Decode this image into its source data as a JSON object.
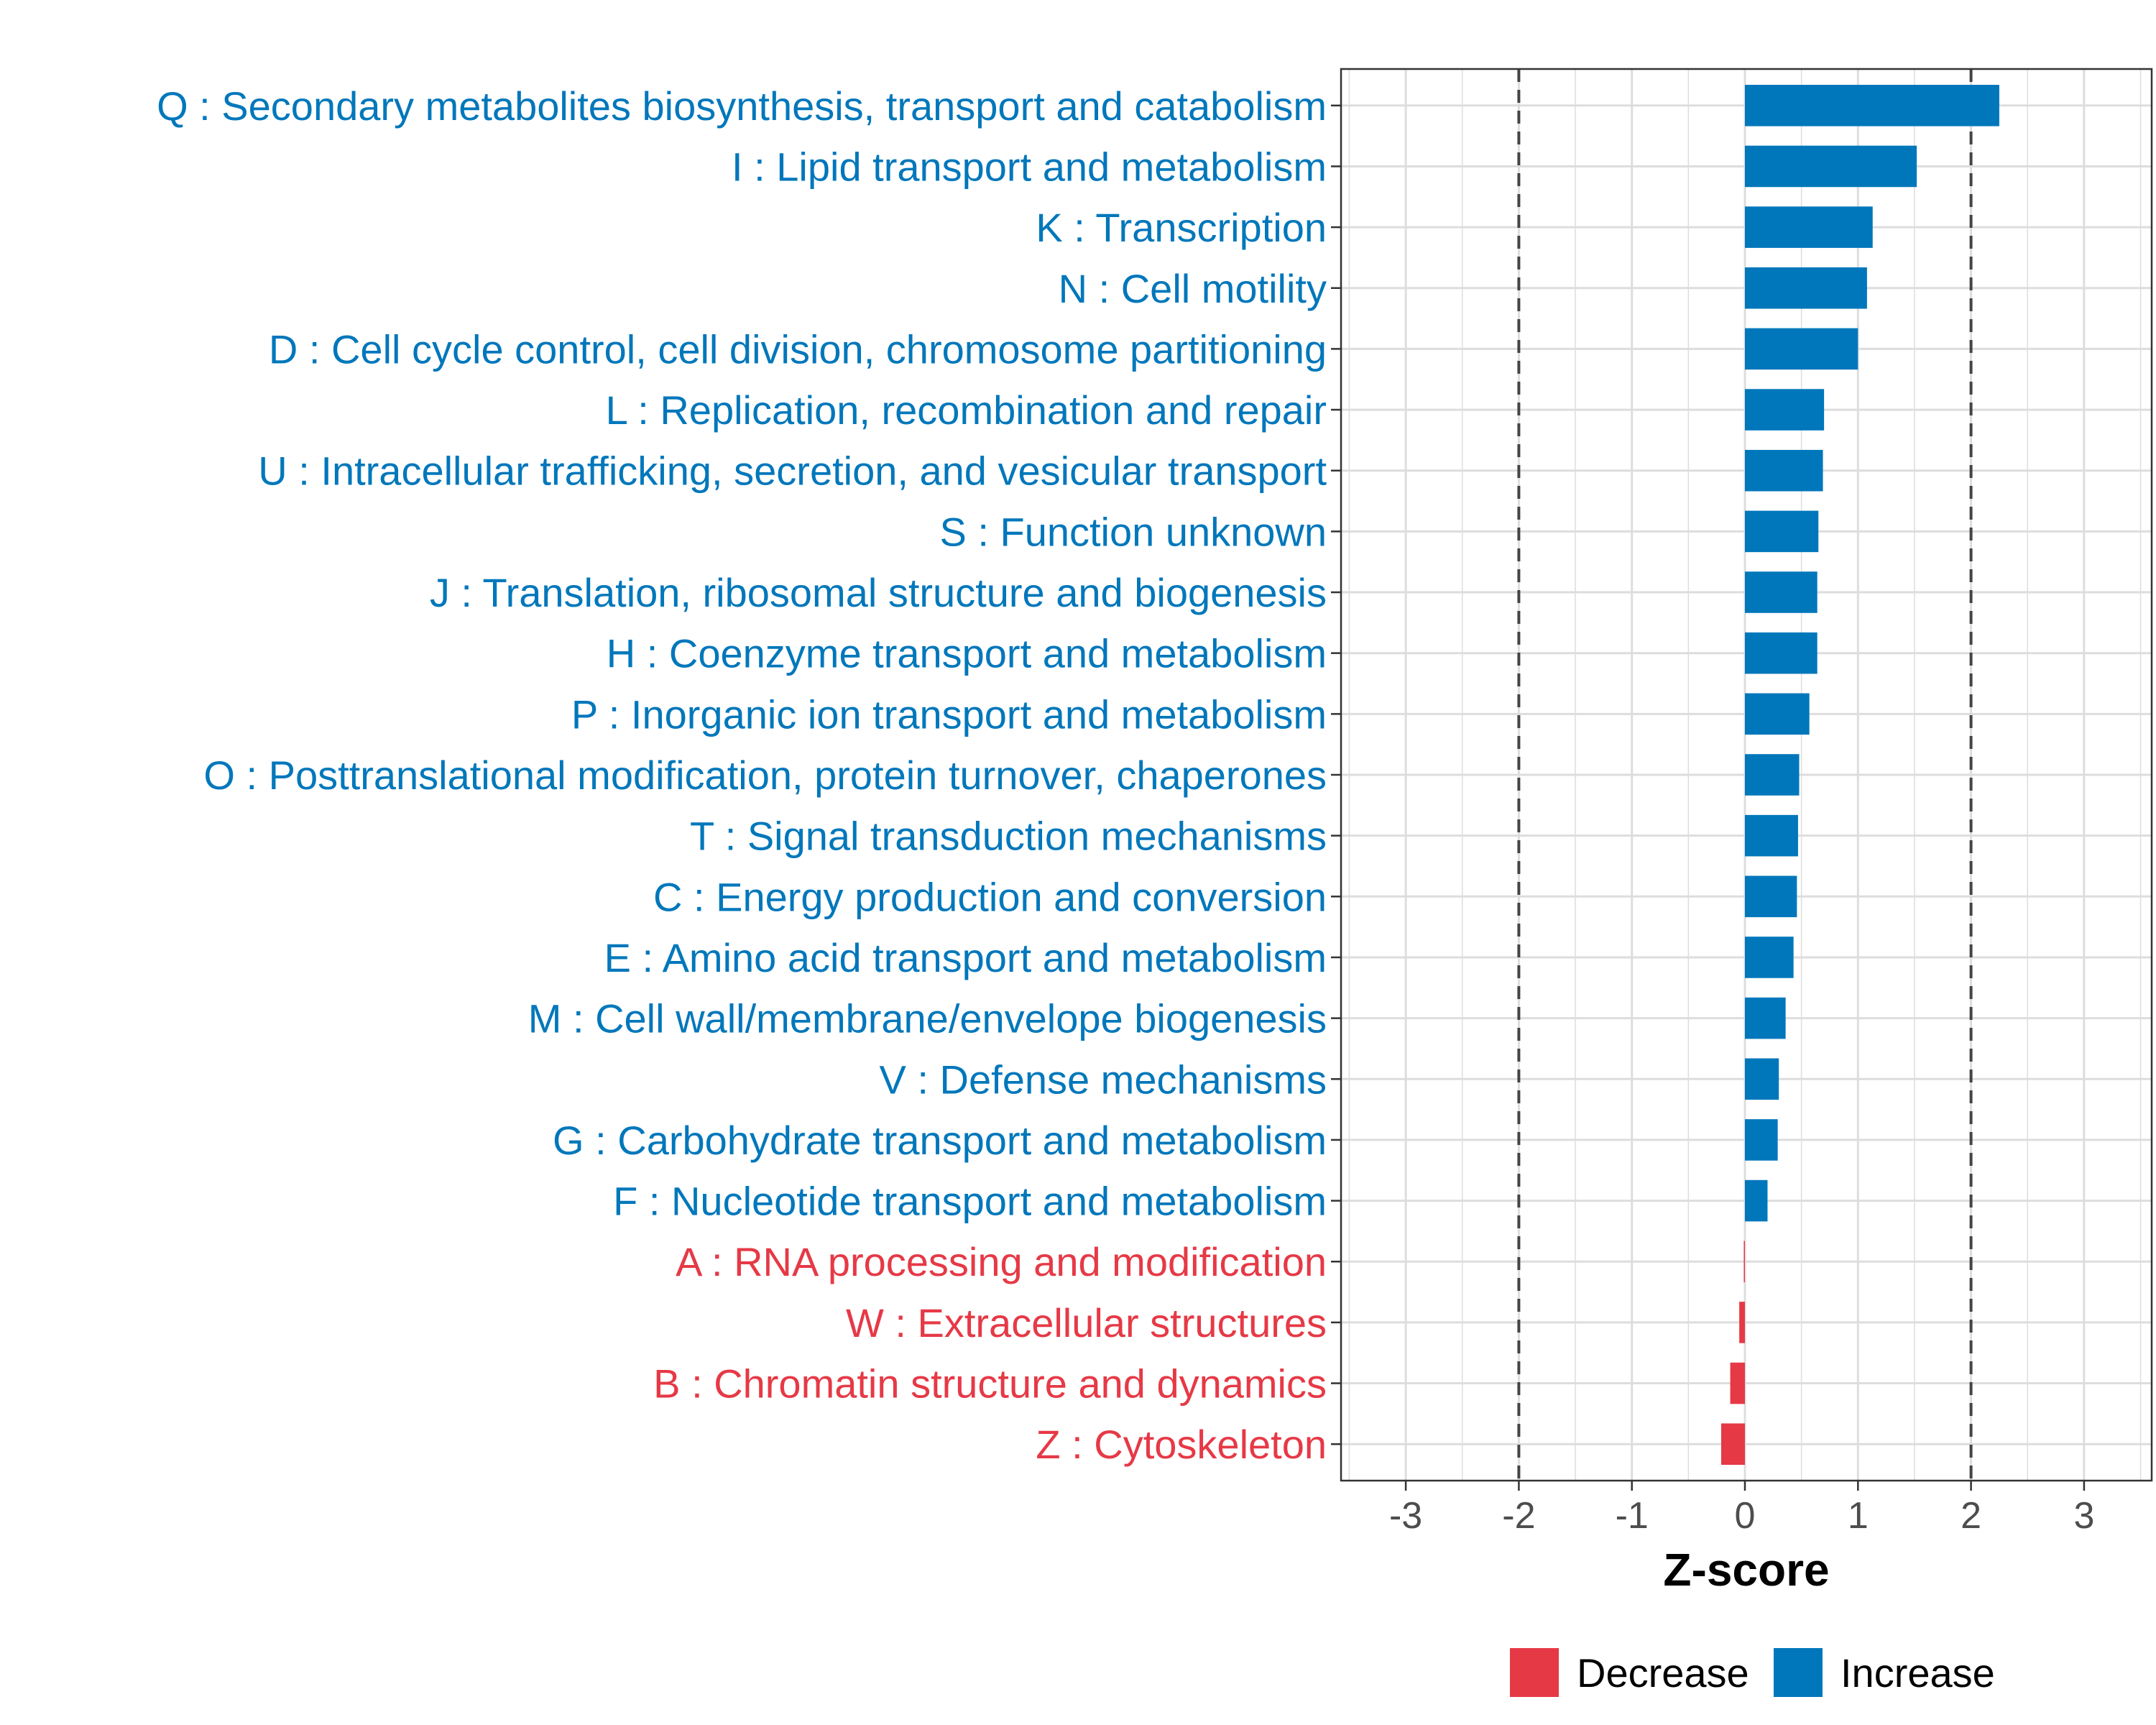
{
  "chart_data": {
    "type": "bar",
    "orientation": "horizontal",
    "title": "",
    "xlabel": "Z-score",
    "ylabel": "",
    "xlim": [
      -3.55,
      3.55
    ],
    "xticks": [
      -3,
      -2,
      -1,
      0,
      1,
      2,
      3
    ],
    "reference_lines": [
      -2,
      2
    ],
    "grid": true,
    "legend_position": "bottom",
    "colors": {
      "increase": "#0077BB",
      "decrease": "#E63946"
    },
    "legend": [
      {
        "key": "decrease",
        "label": "Decrease"
      },
      {
        "key": "increase",
        "label": "Increase"
      }
    ],
    "categories": [
      "Q : Secondary metabolites biosynthesis, transport and catabolism",
      "I : Lipid transport and metabolism",
      "K : Transcription",
      "N : Cell motility",
      "D : Cell cycle control, cell division, chromosome partitioning",
      "L : Replication, recombination and repair",
      "U : Intracellular trafficking, secretion, and vesicular transport",
      "S : Function unknown",
      "J : Translation, ribosomal structure and biogenesis",
      "H : Coenzyme transport and metabolism",
      "P : Inorganic ion transport and metabolism",
      "O : Posttranslational modification, protein turnover, chaperones",
      "T : Signal transduction mechanisms",
      "C : Energy production and conversion",
      "E : Amino acid transport and metabolism",
      "M : Cell wall/membrane/envelope biogenesis",
      "V : Defense mechanisms",
      "G : Carbohydrate transport and metabolism",
      "F : Nucleotide transport and metabolism",
      "A : RNA processing and modification",
      "W : Extracellular structures",
      "B : Chromatin structure and dynamics",
      "Z : Cytoskeleton"
    ],
    "values": [
      2.25,
      1.52,
      1.13,
      1.08,
      1.0,
      0.7,
      0.69,
      0.65,
      0.64,
      0.64,
      0.57,
      0.48,
      0.47,
      0.46,
      0.43,
      0.36,
      0.3,
      0.29,
      0.2,
      -0.01,
      -0.05,
      -0.13,
      -0.21
    ]
  }
}
